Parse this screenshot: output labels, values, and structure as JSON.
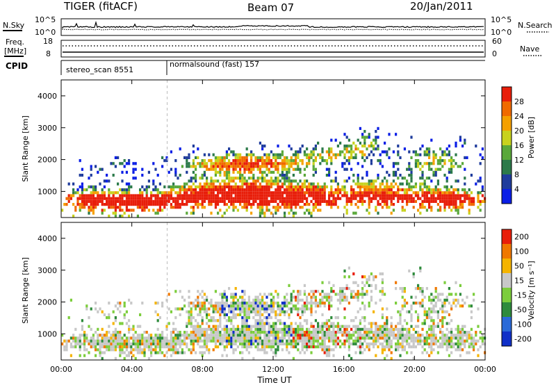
{
  "header": {
    "radar": "TIGER (fitACF)",
    "beam": "Beam 07",
    "date": "20/Jan/2011"
  },
  "panels": {
    "nsky": {
      "left_label": "N.Sky",
      "right_label": "N.Search",
      "left_ticks": [
        "10^5",
        "10^0"
      ],
      "right_ticks": [
        "10^5",
        "10^0"
      ]
    },
    "freq": {
      "left_label_1": "Freq.",
      "left_label_2": "[MHz]",
      "right_label": "Nave",
      "left_ticks": [
        "18",
        "8"
      ],
      "right_ticks": [
        "60",
        "0"
      ]
    },
    "cpid": {
      "label": "CPID",
      "programs": [
        "stereo_scan 8551",
        "normalsound (fast) 157"
      ]
    }
  },
  "chart_data": [
    {
      "type": "heatmap",
      "name": "power",
      "ylabel": "Slant Range [km]",
      "ylim": [
        180,
        4500
      ],
      "yticks": [
        "1000",
        "2000",
        "3000",
        "4000"
      ],
      "xlim_hours": [
        0,
        24
      ],
      "xticks": [
        "00:00",
        "04:00",
        "08:00",
        "12:00",
        "16:00",
        "20:00",
        "00:00"
      ],
      "colorbar": {
        "label": "Power [dB]",
        "ticks": [
          "4",
          "8",
          "12",
          "16",
          "20",
          "24",
          "28"
        ],
        "colors": [
          "#0a1ee6",
          "#1f3c9c",
          "#2c7a4a",
          "#5aa83a",
          "#c8d21e",
          "#f5a000",
          "#f06a00",
          "#e81e0a"
        ]
      }
    },
    {
      "type": "heatmap",
      "name": "velocity",
      "ylabel": "Slant Range [km]",
      "ylim": [
        180,
        4500
      ],
      "yticks": [
        "1000",
        "2000",
        "3000",
        "4000"
      ],
      "xlim_hours": [
        0,
        24
      ],
      "xticks": [
        "00:00",
        "04:00",
        "08:00",
        "12:00",
        "16:00",
        "20:00",
        "00:00"
      ],
      "xlabel": "Time UT",
      "colorbar": {
        "label": "Velocity [m s⁻¹]",
        "ticks": [
          "200",
          "100",
          "50",
          "15",
          "-15",
          "-50",
          "-100",
          "-200"
        ],
        "colors": [
          "#1030c8",
          "#2a6ad8",
          "#2e8b3c",
          "#7ccd3c",
          "#c8c8c8",
          "#f5b400",
          "#f07800",
          "#e81e0a"
        ]
      }
    }
  ]
}
